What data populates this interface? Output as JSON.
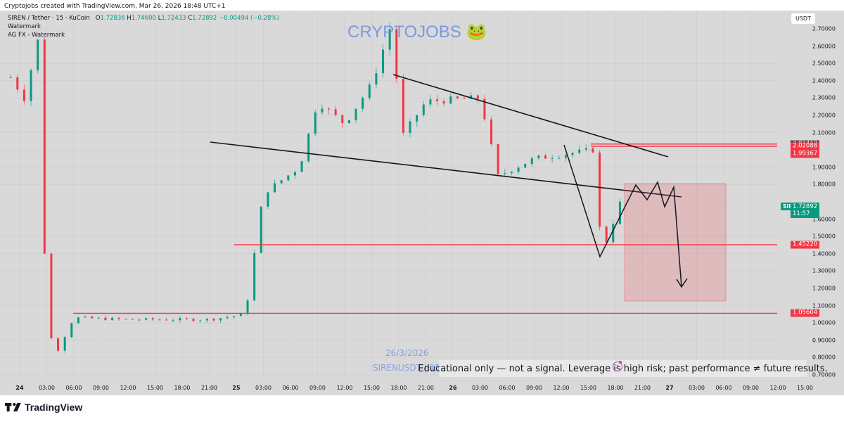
{
  "caption": "Cryptojobs created with TradingView.com, Mar 26, 2026 18:48 UTC+1",
  "legend": {
    "symbol": "SIREN / Tether · 15 · KuCoin",
    "open_label": "O",
    "open": "1.72836",
    "high_label": "H",
    "high": "1.74600",
    "low_label": "L",
    "low": "1.72433",
    "close_label": "C",
    "close": "1.72892",
    "change": "−0.00494 (−0.28%)",
    "line2": "Watermark",
    "line3": "AG FX - Watermark"
  },
  "currency_button": "USDT",
  "watermark": {
    "title": "CRYPTOJOBS",
    "emoji": "🐸",
    "date": "26/3/2026",
    "symbol_line": "SIRENUSDT | 15/"
  },
  "disclaimer": "Educational only — not a signal. Leverage is high risk; past performance ≠ future results.",
  "price_tags": [
    {
      "value": "2.03412",
      "price": 2.03412,
      "color": "#4a4a4a"
    },
    {
      "value": "2.02088",
      "price": 2.02088,
      "color": "#f23645"
    },
    {
      "value": "1.99367",
      "price": 1.99367,
      "color": "#f23645"
    },
    {
      "value": "1.45220",
      "price": 1.4522,
      "color": "#f23645"
    },
    {
      "value": "1.05604",
      "price": 1.05604,
      "color": "#f23645"
    }
  ],
  "current_price": {
    "symbol": "SIRENUSDT",
    "value": "1.72892",
    "countdown": "11:57",
    "color": "#089981"
  },
  "branding": {
    "name": "TradingView"
  },
  "colors": {
    "up": "#089981",
    "down": "#f23645",
    "grid": "#cccccc",
    "bg": "#d9d9d9",
    "trendline": "#131722",
    "zone": "rgba(242,54,69,0.18)"
  },
  "chart_data": {
    "type": "candlestick",
    "title": "SIREN / Tether · 15 · KuCoin",
    "interval": "15m",
    "exchange": "KuCoin",
    "ylabel": "USDT",
    "ylim": [
      0.66,
      2.78
    ],
    "y_ticks": [
      "2.70000",
      "2.60000",
      "2.50000",
      "2.40000",
      "2.30000",
      "2.20000",
      "2.10000",
      "1.90000",
      "1.80000",
      "1.60000",
      "1.50000",
      "1.40000",
      "1.30000",
      "1.20000",
      "1.10000",
      "1.00000",
      "0.90000",
      "0.80000",
      "0.70000"
    ],
    "x_ticks": [
      "24",
      "03:00",
      "06:00",
      "09:00",
      "12:00",
      "15:00",
      "18:00",
      "21:00",
      "25",
      "03:00",
      "06:00",
      "09:00",
      "12:00",
      "15:00",
      "18:00",
      "21:00",
      "26",
      "03:00",
      "06:00",
      "09:00",
      "12:00",
      "15:00",
      "18:00",
      "21:00",
      "27",
      "03:00",
      "06:00",
      "09:00",
      "12:00",
      "15:00"
    ],
    "ohlc": {
      "open": 1.72836,
      "high": 1.746,
      "low": 1.72433,
      "close": 1.72892,
      "change": -0.00494,
      "change_pct": -0.28
    },
    "approx_price_path": [
      {
        "t": "Mar 23 23:00",
        "price": 2.42
      },
      {
        "t": "Mar 24 00:30",
        "price": 2.3
      },
      {
        "t": "Mar 24 02:00",
        "price": 2.63
      },
      {
        "t": "Mar 24 03:00",
        "price": 1.0
      },
      {
        "t": "Mar 24 04:00",
        "price": 0.82
      },
      {
        "t": "Mar 24 06:00",
        "price": 1.03
      },
      {
        "t": "Mar 24 12:00",
        "price": 1.02
      },
      {
        "t": "Mar 24 21:00",
        "price": 1.02
      },
      {
        "t": "Mar 25 01:00",
        "price": 1.05
      },
      {
        "t": "Mar 25 03:00",
        "price": 1.75
      },
      {
        "t": "Mar 25 07:00",
        "price": 1.9
      },
      {
        "t": "Mar 25 09:00",
        "price": 2.28
      },
      {
        "t": "Mar 25 12:00",
        "price": 2.15
      },
      {
        "t": "Mar 25 15:00",
        "price": 2.38
      },
      {
        "t": "Mar 25 17:30",
        "price": 2.78
      },
      {
        "t": "Mar 25 18:00",
        "price": 2.05
      },
      {
        "t": "Mar 25 21:00",
        "price": 2.28
      },
      {
        "t": "Mar 26 03:00",
        "price": 2.3
      },
      {
        "t": "Mar 26 05:00",
        "price": 1.85
      },
      {
        "t": "Mar 26 09:00",
        "price": 1.95
      },
      {
        "t": "Mar 26 15:30",
        "price": 2.0
      },
      {
        "t": "Mar 26 16:30",
        "price": 1.4
      },
      {
        "t": "Mar 26 18:45",
        "price": 1.72892
      }
    ],
    "horizontal_levels": [
      2.03412,
      2.02088,
      1.99367,
      1.4522,
      1.05604
    ],
    "annotations": [
      "Descending upper trendline from ~2.44 (Mar 25 18:00) to ~1.97 (Mar 27 00:00)",
      "Descending lower trendline from ~2.05 (Mar 24 22:00) to ~1.76 (Mar 27 03:00)",
      "Projected zigzag path ending in down arrow near 1.21",
      "Shaded red target zone from ~1.81 to ~1.13 (Mar 26 21:00 – Mar 27 06:00)"
    ],
    "grid": true
  }
}
